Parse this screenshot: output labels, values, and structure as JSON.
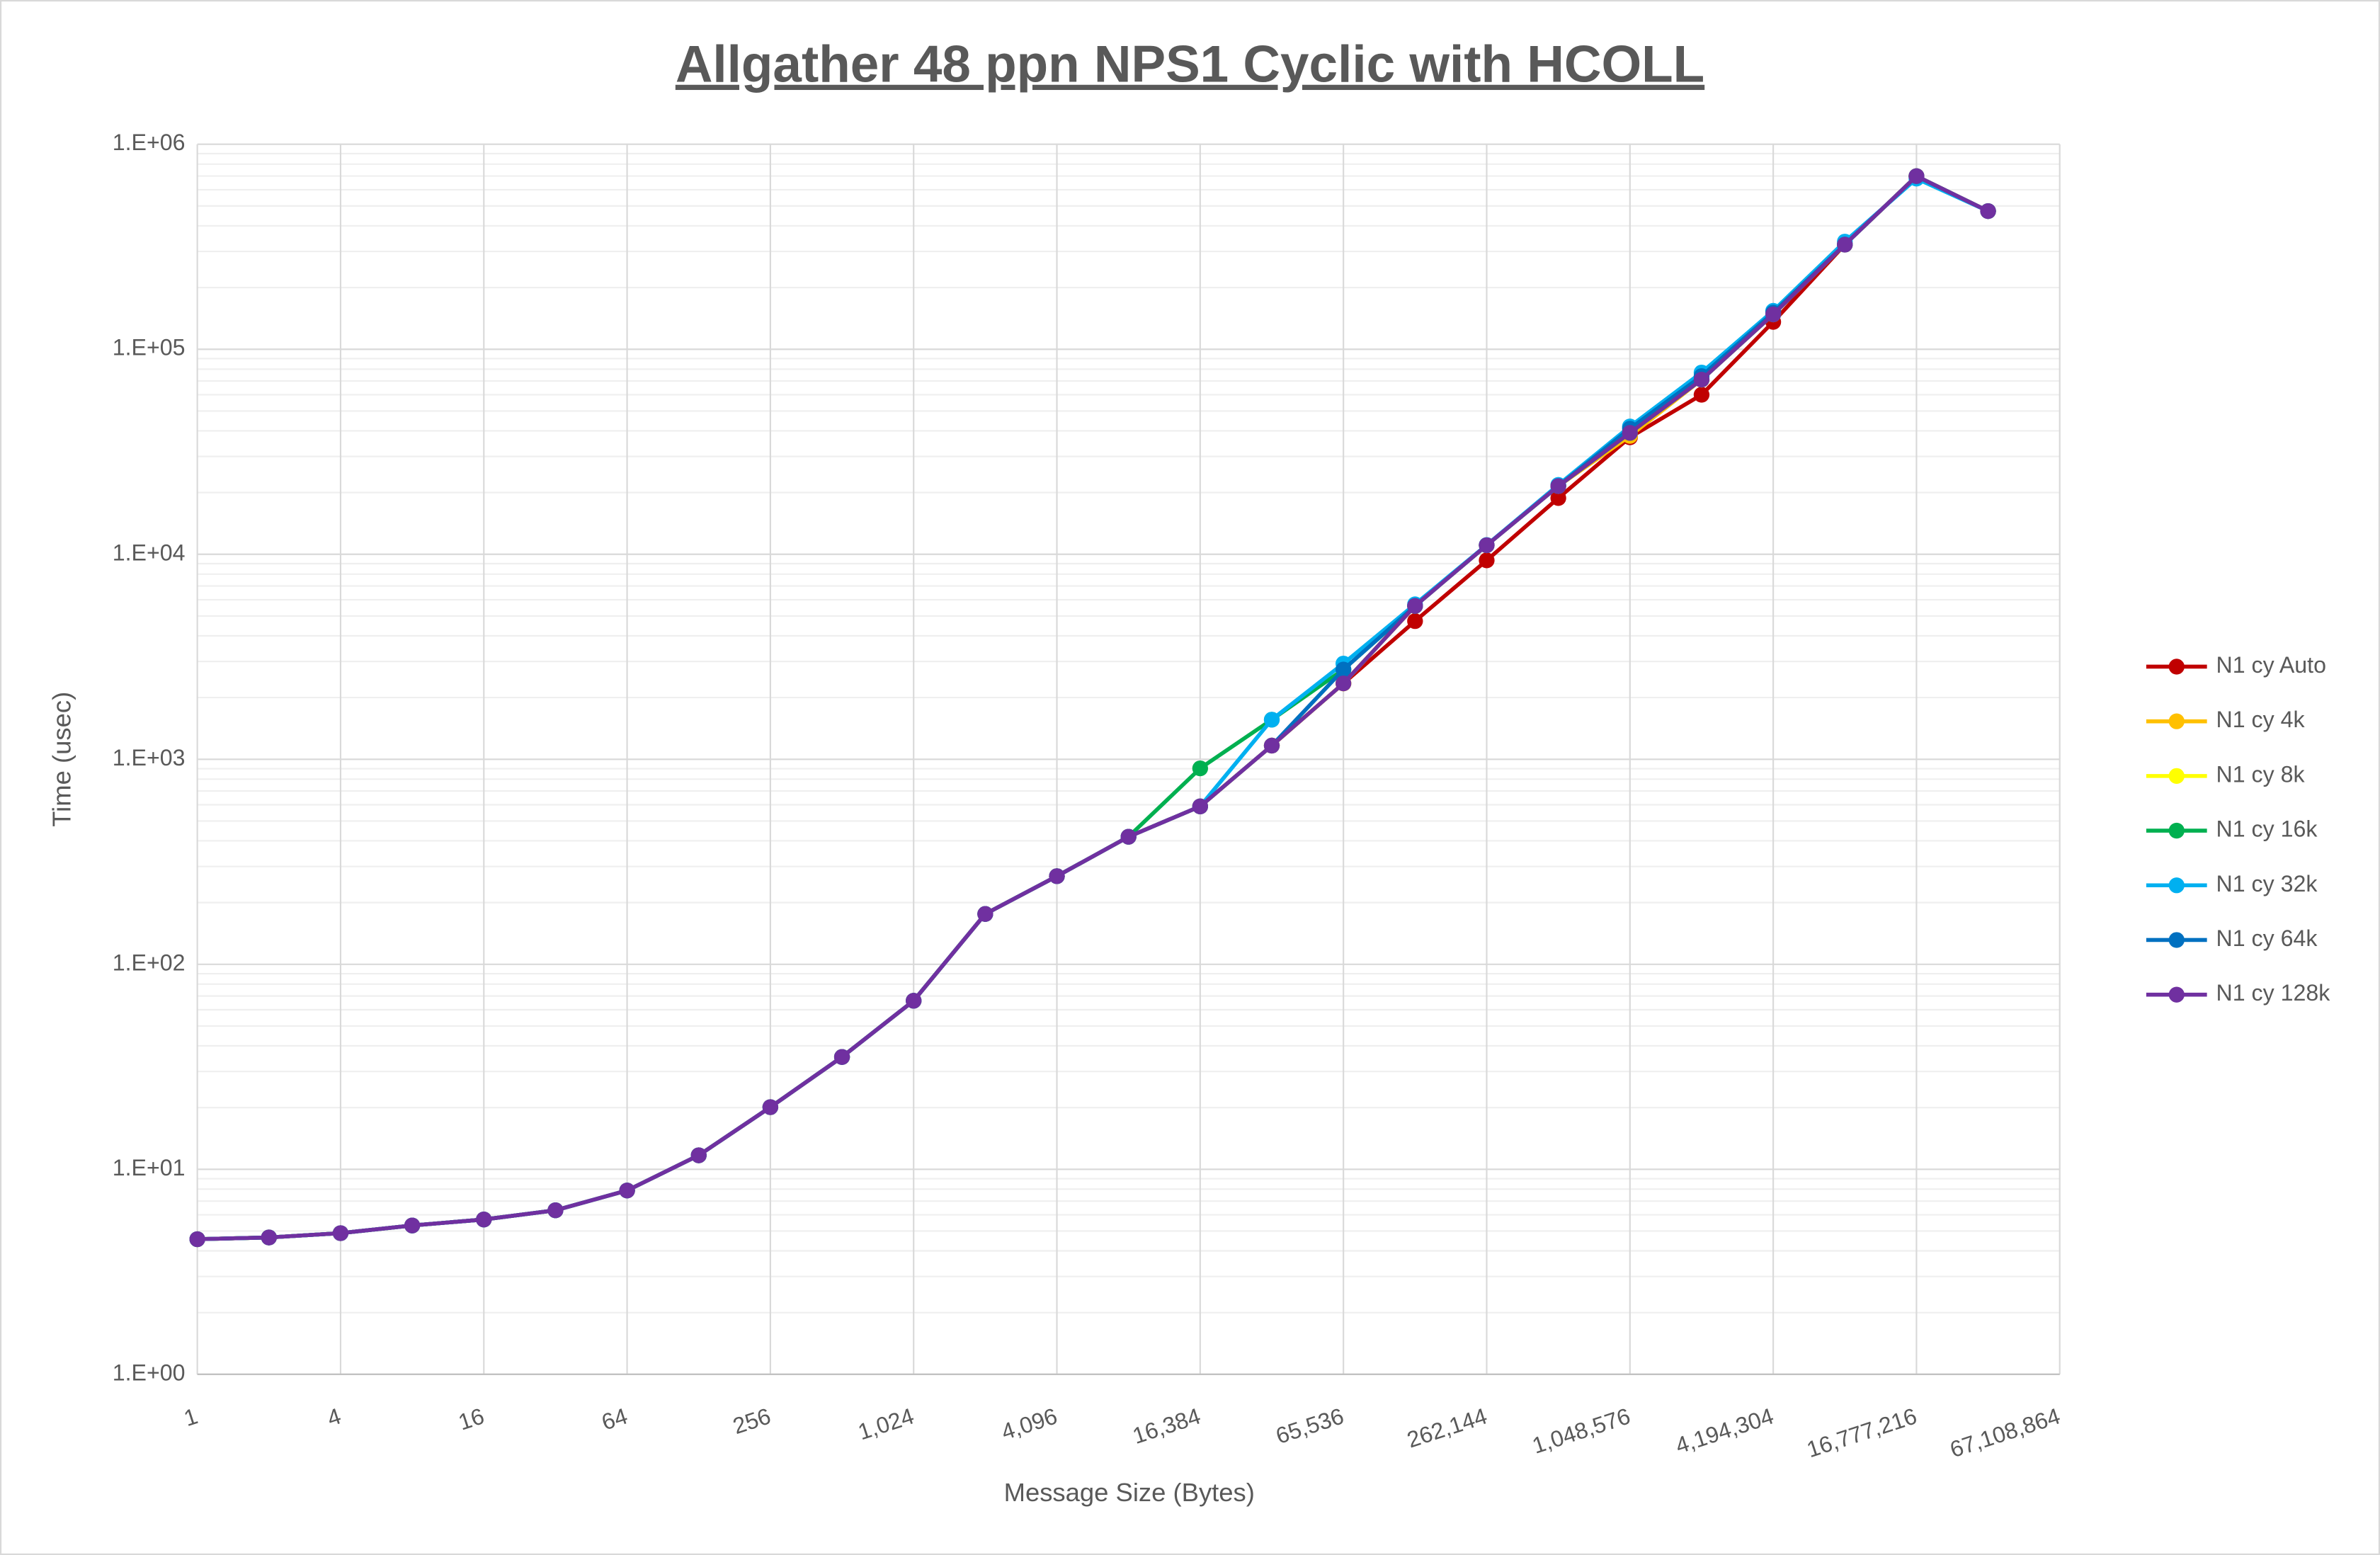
{
  "chart_data": {
    "type": "line",
    "title": "Allgather 48 ppn NPS1 Cyclic with HCOLL",
    "x_label": "Message Size (Bytes)",
    "y_label": "Time (usec)",
    "x": [
      1,
      2,
      4,
      8,
      16,
      32,
      64,
      128,
      256,
      512,
      1024,
      2048,
      4096,
      8192,
      16384,
      32768,
      65536,
      131072,
      262144,
      524288,
      1048576,
      2097152,
      4194304,
      8388608,
      16777216,
      33554432
    ],
    "x_log_base": 2,
    "y_log_base": 10,
    "xlim": [
      1,
      67108864
    ],
    "ylim": [
      1,
      1000000
    ],
    "xticks": [
      1,
      4,
      16,
      64,
      256,
      {
        "value": 1024,
        "label": "1,024"
      },
      {
        "value": 4096,
        "label": "4,096"
      },
      {
        "value": 16384,
        "label": "16,384"
      },
      {
        "value": 65536,
        "label": "65,536"
      },
      {
        "value": 262144,
        "label": "262,144"
      },
      {
        "value": 1048576,
        "label": "1,048,576"
      },
      {
        "value": 4194304,
        "label": "4,194,304"
      },
      {
        "value": 16777216,
        "label": "16,777,216"
      },
      {
        "value": 67108864,
        "label": "67,108,864"
      }
    ],
    "yticks": [
      {
        "value": 1,
        "label": "1.E+00"
      },
      {
        "value": 10,
        "label": "1.E+01"
      },
      {
        "value": 100,
        "label": "1.E+02"
      },
      {
        "value": 1000,
        "label": "1.E+03"
      },
      {
        "value": 10000,
        "label": "1.E+04"
      },
      {
        "value": 100000,
        "label": "1.E+05"
      },
      {
        "value": 1000000,
        "label": "1.E+06"
      }
    ],
    "grid": true,
    "minor_grid": true,
    "legend": "right",
    "series": [
      {
        "name": "N1 cy Auto",
        "color": "#c00000",
        "values": [
          4.56,
          4.65,
          4.88,
          5.32,
          5.69,
          6.31,
          7.88,
          11.7,
          20.1,
          35.3,
          66.4,
          176,
          269,
          419,
          589,
          1166,
          2345,
          4720,
          9340,
          18800,
          37200,
          60000,
          136000,
          324000,
          699000,
          472000
        ]
      },
      {
        "name": "N1 cy 4k",
        "color": "#ffc000",
        "values": [
          4.56,
          4.65,
          4.88,
          5.32,
          5.69,
          6.31,
          7.88,
          11.7,
          20.1,
          35.3,
          66.4,
          176,
          269,
          419,
          589,
          1166,
          2345,
          5598,
          11070,
          21500,
          37800,
          71100,
          148000,
          324000,
          699000,
          472000
        ]
      },
      {
        "name": "N1 cy 8k",
        "color": "#ffff00",
        "values": [
          4.56,
          4.65,
          4.88,
          5.32,
          5.69,
          6.31,
          7.88,
          11.7,
          20.1,
          35.3,
          66.4,
          176,
          269,
          419,
          589,
          1166,
          2345,
          5598,
          11070,
          21500,
          39100,
          71100,
          148000,
          324000,
          699000,
          472000
        ]
      },
      {
        "name": "N1 cy 16k",
        "color": "#00b050",
        "values": [
          4.56,
          4.65,
          4.88,
          5.32,
          5.69,
          6.31,
          7.88,
          11.7,
          20.1,
          35.3,
          66.4,
          176,
          269,
          419,
          903,
          1560,
          2740,
          5598,
          11070,
          21500,
          39100,
          71100,
          148000,
          324000,
          699000,
          472000
        ]
      },
      {
        "name": "N1 cy 32k",
        "color": "#00b0f0",
        "values": [
          4.56,
          4.65,
          4.88,
          5.32,
          5.69,
          6.31,
          7.88,
          11.7,
          20.1,
          35.3,
          66.4,
          176,
          269,
          419,
          589,
          1560,
          2930,
          5700,
          11100,
          21800,
          42000,
          77000,
          154000,
          335000,
          680000,
          472000
        ]
      },
      {
        "name": "N1 cy 64k",
        "color": "#0070c0",
        "values": [
          4.56,
          4.65,
          4.88,
          5.32,
          5.69,
          6.31,
          7.88,
          11.7,
          20.1,
          35.3,
          66.4,
          176,
          269,
          419,
          589,
          1166,
          2740,
          5598,
          11070,
          21500,
          41000,
          74000,
          151000,
          324000,
          699000,
          472000
        ]
      },
      {
        "name": "N1 cy 128k",
        "color": "#7030a0",
        "values": [
          4.56,
          4.65,
          4.88,
          5.32,
          5.69,
          6.31,
          7.88,
          11.7,
          20.1,
          35.3,
          66.4,
          176,
          269,
          419,
          589,
          1166,
          2345,
          5598,
          11070,
          21500,
          39100,
          71100,
          148000,
          324000,
          699000,
          472000
        ]
      }
    ]
  }
}
